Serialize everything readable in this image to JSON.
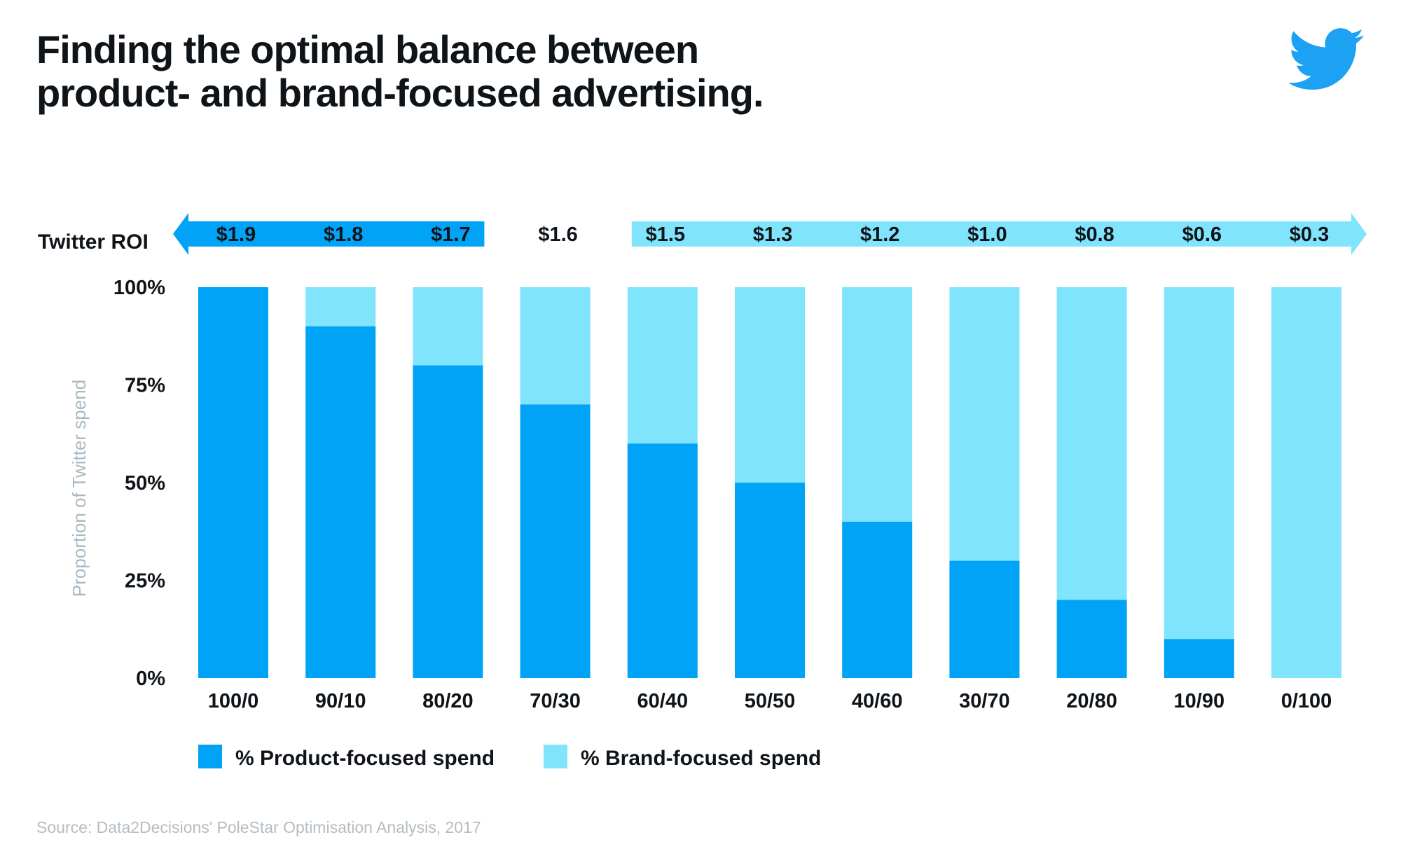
{
  "header": {
    "title_line1": "Finding the optimal balance between",
    "title_line2": "product- and brand-focused advertising."
  },
  "logo": {
    "icon": "twitter-bird-icon",
    "color": "#1da1f2"
  },
  "colors": {
    "product": "#00a3f5",
    "brand": "#80e4fd",
    "text": "#0f1419",
    "muted": "#aab8c2"
  },
  "chart_data": {
    "type": "bar",
    "stacked": true,
    "categories": [
      "100/0",
      "90/10",
      "80/20",
      "70/30",
      "60/40",
      "50/50",
      "40/60",
      "30/70",
      "20/80",
      "10/90",
      "0/100"
    ],
    "series": [
      {
        "name": "% Product-focused spend",
        "values": [
          100,
          90,
          80,
          70,
          60,
          50,
          40,
          30,
          20,
          10,
          0
        ]
      },
      {
        "name": "% Brand-focused spend",
        "values": [
          0,
          10,
          20,
          30,
          40,
          50,
          60,
          70,
          80,
          90,
          100
        ]
      }
    ],
    "ylabel": "Proportion of Twitter spend",
    "yticks": [
      "0%",
      "25%",
      "50%",
      "75%",
      "100%"
    ],
    "ylim": [
      0,
      100
    ],
    "grid": false,
    "legend": "bottom-left",
    "roi": {
      "label": "Twitter ROI",
      "values": [
        "$1.9",
        "$1.8",
        "$1.7",
        "$1.6",
        "$1.5",
        "$1.3",
        "$1.2",
        "$1.0",
        "$0.8",
        "$0.6",
        "$0.3"
      ],
      "product_arrow_categories": 3,
      "brand_arrow_start_category": 4
    }
  },
  "source": "Source: Data2Decisions' PoleStar Optimisation Analysis, 2017"
}
